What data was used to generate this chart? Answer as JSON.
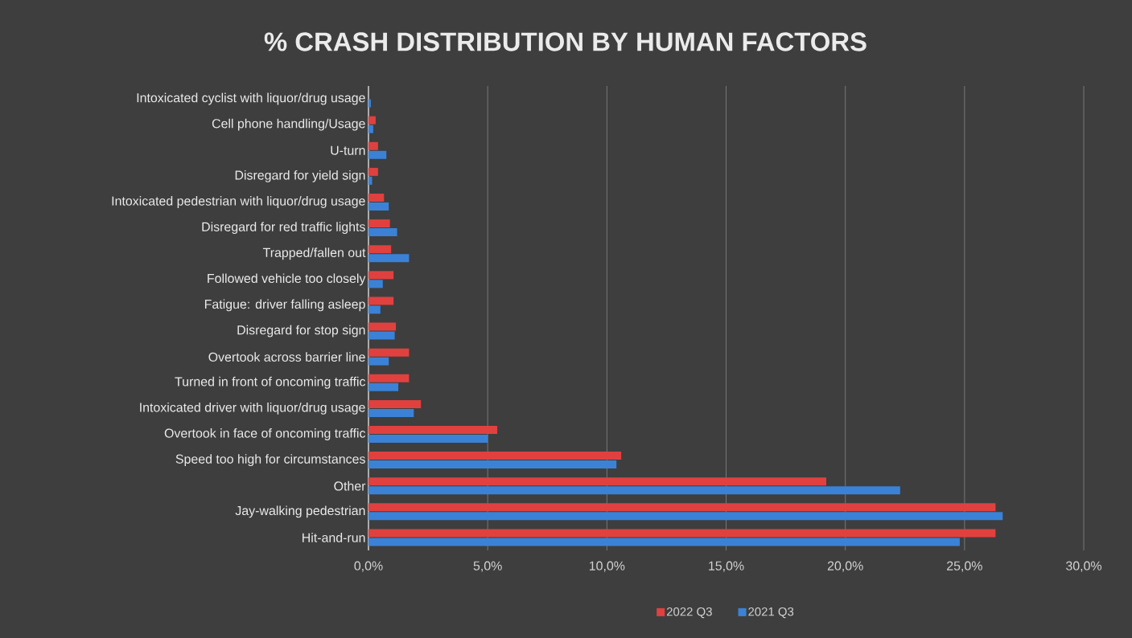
{
  "chart_data": {
    "type": "bar",
    "orientation": "horizontal",
    "title": "% CRASH DISTRIBUTION BY HUMAN FACTORS",
    "categories": [
      "Intoxicated cyclist with liquor/drug usage",
      "Cell phone handling/Usage",
      "U-turn",
      "Disregard for yield sign",
      "Intoxicated pedestrian with liquor/drug usage",
      "Disregard for red traffic lights",
      "Trapped/fallen out",
      "Followed vehicle too closely",
      "Fatigue: driver falling asleep",
      "Disregard for stop sign",
      "Overtook across barrier line",
      "Turned in front of oncoming traffic",
      "Intoxicated driver with liquor/drug usage",
      "Overtook in face of oncoming traffic",
      "Speed too high for circumstances",
      "Other",
      "Jay-walking pedestrian",
      "Hit-and-run"
    ],
    "series": [
      {
        "name": "2022 Q3",
        "color": "#e0413f",
        "values": [
          0.0,
          0.3,
          0.4,
          0.4,
          0.65,
          0.9,
          0.95,
          1.05,
          1.05,
          1.15,
          1.7,
          1.7,
          2.2,
          5.4,
          10.6,
          19.2,
          26.3,
          26.3
        ]
      },
      {
        "name": "2021 Q3",
        "color": "#3b82d6",
        "values": [
          0.1,
          0.2,
          0.75,
          0.15,
          0.85,
          1.2,
          1.7,
          0.6,
          0.5,
          1.1,
          0.85,
          1.25,
          1.9,
          5.0,
          10.4,
          22.3,
          26.6,
          24.8
        ]
      }
    ],
    "xlim": [
      0,
      30
    ],
    "xticks": [
      {
        "value": 0,
        "label": "0,0%"
      },
      {
        "value": 5,
        "label": "5,0%"
      },
      {
        "value": 10,
        "label": "10,0%"
      },
      {
        "value": 15,
        "label": "15,0%"
      },
      {
        "value": 20,
        "label": "20,0%"
      },
      {
        "value": 25,
        "label": "25,0%"
      },
      {
        "value": 30,
        "label": "30,0%"
      }
    ],
    "grid": "x",
    "legend": "bottom"
  }
}
